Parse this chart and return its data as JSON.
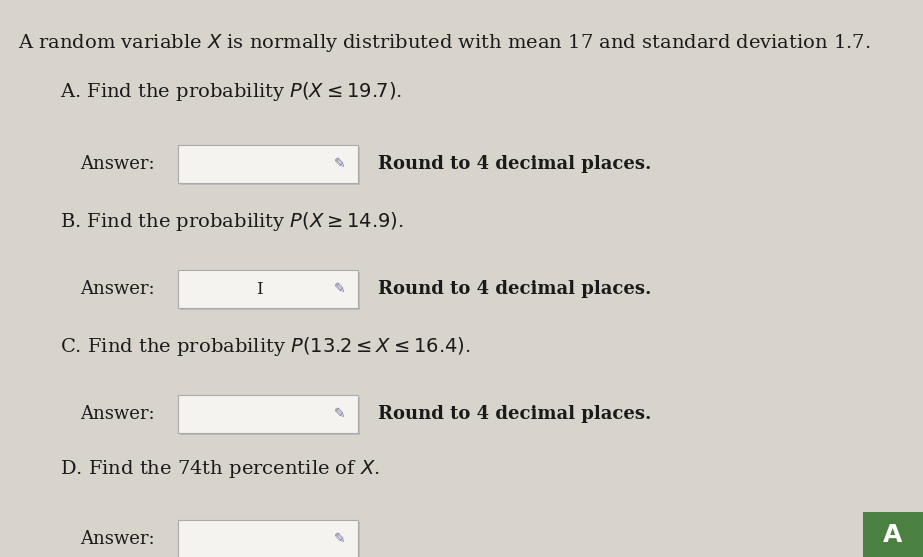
{
  "bg_color": "#d8d4cc",
  "text_color": "#1a1a1a",
  "header_text": "A random variable $X$ is normally distributed with mean 17 and standard deviation 1.7.",
  "parts": [
    {
      "label": "A. Find the probability $P(X \\leq 19.7)$.",
      "has_answer": true,
      "round_text": "Round to 4 decimal places.",
      "has_cursor": false
    },
    {
      "label": "B. Find the probability $P(X \\geq 14.9)$.",
      "has_answer": true,
      "round_text": "Round to 4 decimal places.",
      "has_cursor": true
    },
    {
      "label": "C. Find the probability $P(13.2 \\leq X \\leq 16.4)$.",
      "has_answer": true,
      "round_text": "Round to 4 decimal places.",
      "has_cursor": false
    },
    {
      "label": "D. Find the 74th percentile of $X$.",
      "has_answer": true,
      "round_text": null,
      "has_cursor": false
    }
  ],
  "box_facecolor": "#f5f3ef",
  "box_edgecolor": "#aaaaaa",
  "box_shadow_color": "#bbbbbb",
  "green_box_color": "#4a8040",
  "green_box_text": "A",
  "font_size_header": 14,
  "font_size_part": 14,
  "font_size_answer": 13,
  "font_size_round": 13
}
